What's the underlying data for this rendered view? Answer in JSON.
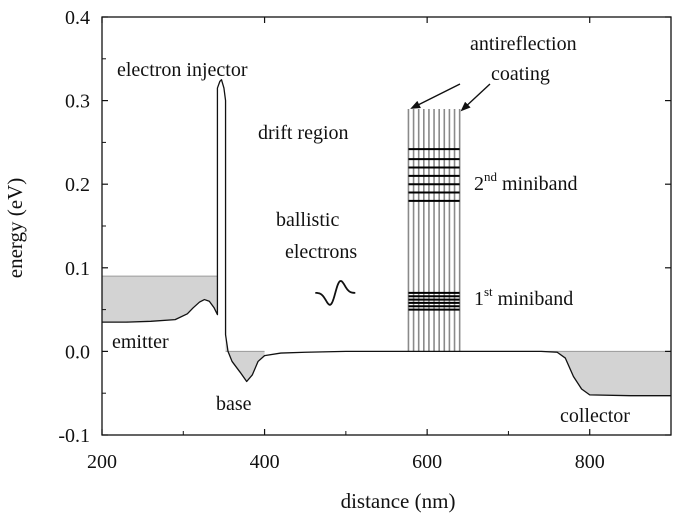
{
  "chart_data": {
    "type": "line",
    "title": "",
    "xlabel": "distance (nm)",
    "ylabel": "energy (eV)",
    "xlim": [
      200,
      900
    ],
    "ylim": [
      -0.1,
      0.4
    ],
    "xticks": [
      "200",
      "400",
      "600",
      "800"
    ],
    "xtick_values": [
      200,
      400,
      600,
      800
    ],
    "yticks": [
      "-0.1",
      "0.0",
      "0.1",
      "0.2",
      "0.3",
      "0.4"
    ],
    "ytick_values": [
      -0.1,
      0.0,
      0.1,
      0.2,
      0.3,
      0.4
    ],
    "grid": false,
    "series": [
      {
        "x": [
          200,
          230,
          260,
          290,
          305,
          312,
          320,
          326,
          332,
          338,
          342,
          342,
          345,
          347,
          350,
          352,
          352,
          355,
          360,
          370,
          378,
          385,
          392,
          400,
          420,
          450,
          500,
          550,
          600,
          650,
          700,
          740,
          760,
          770,
          780,
          790,
          800,
          850,
          900
        ],
        "y": [
          0.035,
          0.035,
          0.036,
          0.038,
          0.045,
          0.052,
          0.059,
          0.062,
          0.06,
          0.052,
          0.044,
          0.315,
          0.323,
          0.325,
          0.315,
          0.3,
          0.02,
          0.0,
          -0.012,
          -0.025,
          -0.036,
          -0.028,
          -0.012,
          -0.005,
          -0.002,
          -0.001,
          0.0,
          0.0,
          0.0,
          0.0,
          0.0,
          0.0,
          -0.001,
          -0.008,
          -0.03,
          -0.045,
          -0.052,
          -0.053,
          -0.053
        ]
      }
    ],
    "fermi_regions": [
      {
        "x": [
          200,
          342
        ],
        "y_top": 0.09
      },
      {
        "x": [
          352,
          400
        ],
        "y_top": 0.0
      },
      {
        "x": [
          740,
          900
        ],
        "y_top": 0.0
      }
    ],
    "superlattice": {
      "x_range": [
        577,
        640
      ],
      "y_range": [
        0.0,
        0.29
      ],
      "barrier_count": 11,
      "miniband_1": [
        0.05,
        0.054,
        0.058,
        0.062,
        0.066,
        0.07
      ],
      "miniband_2": [
        0.18,
        0.19,
        0.2,
        0.21,
        0.22,
        0.23,
        0.242
      ]
    },
    "wavepacket": {
      "center_x": 487,
      "center_y": 0.07,
      "amplitude": 0.027
    },
    "annotations": {
      "electron_injector": "electron injector",
      "antireflection_line1": "antireflection",
      "antireflection_line2": "coating",
      "drift_region": "drift region",
      "ballistic_line1": "ballistic",
      "ballistic_line2": "electrons",
      "miniband2_num": "2",
      "miniband2_sup": "nd",
      "miniband2_word": " miniband",
      "miniband1_num": "1",
      "miniband1_sup": "st",
      "miniband1_word": " miniband",
      "emitter": "emitter",
      "base": "base",
      "collector": "collector"
    }
  },
  "colors": {
    "fill_gray": "#d3d3d3",
    "line": "#111111",
    "barrier": "#8a8a8a",
    "miniband": "#000000"
  }
}
